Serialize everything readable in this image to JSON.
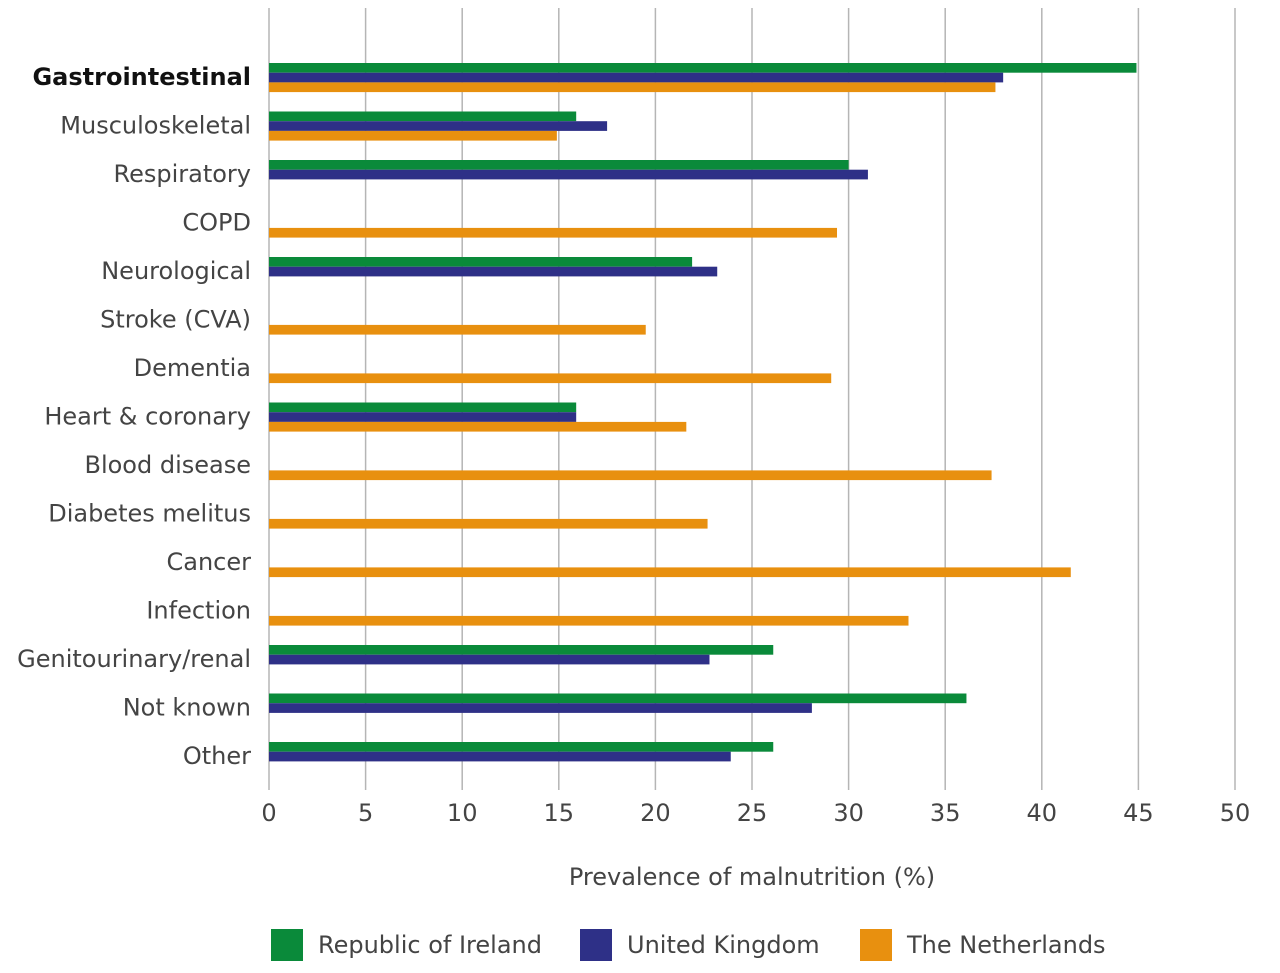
{
  "chart_data": {
    "type": "barh",
    "xlabel": "Prevalence of malnutrition (%)",
    "categories": [
      "Gastrointestinal",
      "Musculoskeletal",
      "Respiratory",
      "COPD",
      "Neurological",
      "Stroke (CVA)",
      "Dementia",
      "Heart & coronary",
      "Blood disease",
      "Diabetes melitus",
      "Cancer",
      "Infection",
      "Genitourinary/renal",
      "Not known",
      "Other"
    ],
    "series": [
      {
        "name": "Republic of Ireland",
        "color": "#0a8a3a",
        "values": [
          44.9,
          15.9,
          30.0,
          null,
          21.9,
          null,
          null,
          15.9,
          null,
          null,
          null,
          null,
          26.1,
          36.1,
          26.1
        ]
      },
      {
        "name": "United Kingdom",
        "color": "#2e3087",
        "values": [
          38.0,
          17.5,
          31.0,
          null,
          23.2,
          null,
          null,
          15.9,
          null,
          null,
          null,
          null,
          22.8,
          28.1,
          23.9
        ]
      },
      {
        "name": "The Netherlands",
        "color": "#e8900f",
        "values": [
          37.6,
          14.9,
          null,
          29.4,
          null,
          19.5,
          29.1,
          21.6,
          37.4,
          22.7,
          41.5,
          33.1,
          null,
          null,
          null
        ]
      }
    ],
    "xlim": [
      0,
      50
    ],
    "xticks": [
      0,
      5,
      10,
      15,
      20,
      25,
      30,
      35,
      40,
      45,
      50
    ],
    "grid": true
  }
}
